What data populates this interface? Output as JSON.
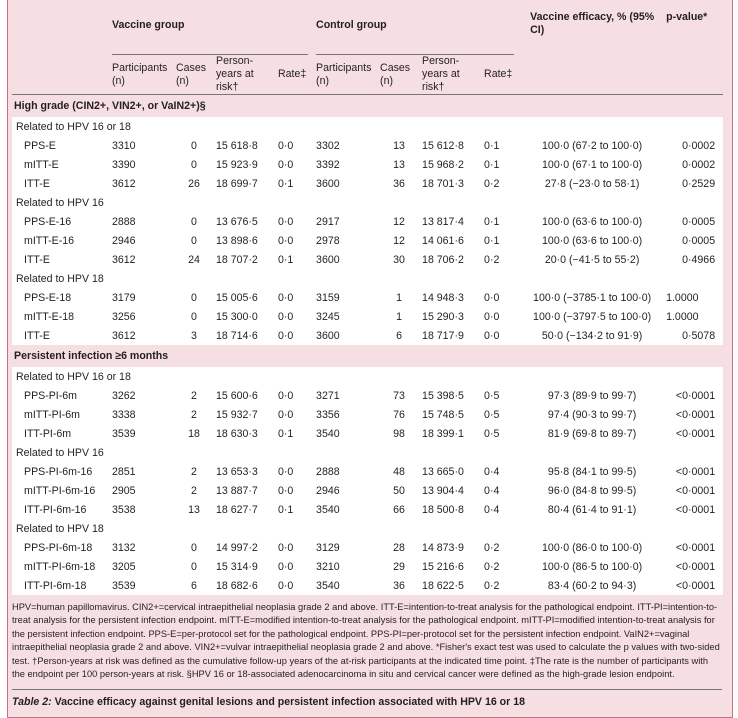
{
  "header": {
    "vaccine_group": "Vaccine group",
    "control_group": "Control group",
    "efficacy": "Vaccine efficacy, % (95% CI)",
    "p_value": "p-value*",
    "participants": "Participants (n)",
    "cases": "Cases (n)",
    "person_years": "Person-years at risk†",
    "rate": "Rate‡"
  },
  "sections": [
    {
      "title": "High grade (CIN2+, VIN2+, or VaIN2+)§",
      "groups": [
        {
          "label": "Related to HPV 16 or 18",
          "rows": [
            [
              "PPS-E",
              "3310",
              "0",
              "15 618·8",
              "0·0",
              "3302",
              "13",
              "15 612·8",
              "0·1",
              "100·0 (67·2 to 100·0)",
              "0·0002"
            ],
            [
              "mITT-E",
              "3390",
              "0",
              "15 923·9",
              "0·0",
              "3392",
              "13",
              "15 968·2",
              "0·1",
              "100·0 (67·1 to 100·0)",
              "0·0002"
            ],
            [
              "ITT-E",
              "3612",
              "26",
              "18 699·7",
              "0·1",
              "3600",
              "36",
              "18 701·3",
              "0·2",
              "27·8 (−23·0 to 58·1)",
              "0·2529"
            ]
          ]
        },
        {
          "label": "Related to HPV 16",
          "rows": [
            [
              "PPS-E-16",
              "2888",
              "0",
              "13 676·5",
              "0·0",
              "2917",
              "12",
              "13 817·4",
              "0·1",
              "100·0 (63·6 to 100·0)",
              "0·0005"
            ],
            [
              "mITT-E-16",
              "2946",
              "0",
              "13 898·6",
              "0·0",
              "2978",
              "12",
              "14 061·6",
              "0·1",
              "100·0 (63·6 to 100·0)",
              "0·0005"
            ],
            [
              "ITT-E",
              "3612",
              "24",
              "18 707·2",
              "0·1",
              "3600",
              "30",
              "18 706·2",
              "0·2",
              "20·0 (−41·5 to 55·2)",
              "0·4966"
            ]
          ]
        },
        {
          "label": "Related to HPV 18",
          "rows": [
            [
              "PPS-E-18",
              "3179",
              "0",
              "15 005·6",
              "0·0",
              "3159",
              "1",
              "14 948·3",
              "0·0",
              "100·0 (−3785·1 to 100·0)",
              "1.0000"
            ],
            [
              "mITT-E-18",
              "3256",
              "0",
              "15 300·0",
              "0·0",
              "3245",
              "1",
              "15 290·3",
              "0·0",
              "100·0 (−3797·5 to 100·0)",
              "1.0000"
            ],
            [
              "ITT-E",
              "3612",
              "3",
              "18 714·6",
              "0·0",
              "3600",
              "6",
              "18 717·9",
              "0·0",
              "50·0 (−134·2 to 91·9)",
              "0·5078"
            ]
          ]
        }
      ]
    },
    {
      "title": "Persistent infection ≥6 months",
      "groups": [
        {
          "label": "Related to HPV 16 or 18",
          "rows": [
            [
              "PPS-PI-6m",
              "3262",
              "2",
              "15 600·6",
              "0·0",
              "3271",
              "73",
              "15 398·5",
              "0·5",
              "97·3 (89·9 to 99·7)",
              "<0·0001"
            ],
            [
              "mITT-PI-6m",
              "3338",
              "2",
              "15 932·7",
              "0·0",
              "3356",
              "76",
              "15 748·5",
              "0·5",
              "97·4 (90·3 to 99·7)",
              "<0·0001"
            ],
            [
              "ITT-PI-6m",
              "3539",
              "18",
              "18 630·3",
              "0·1",
              "3540",
              "98",
              "18 399·1",
              "0·5",
              "81·9 (69·8 to 89·7)",
              "<0·0001"
            ]
          ]
        },
        {
          "label": "Related to HPV 16",
          "rows": [
            [
              "PPS-PI-6m-16",
              "2851",
              "2",
              "13 653·3",
              "0·0",
              "2888",
              "48",
              "13 665·0",
              "0·4",
              "95·8 (84·1 to 99·5)",
              "<0·0001"
            ],
            [
              "mITT-PI-6m-16",
              "2905",
              "2",
              "13 887·7",
              "0·0",
              "2946",
              "50",
              "13 904·4",
              "0·4",
              "96·0 (84·8 to 99·5)",
              "<0·0001"
            ],
            [
              "ITT-PI-6m-16",
              "3538",
              "13",
              "18 627·7",
              "0·1",
              "3540",
              "66",
              "18 500·8",
              "0·4",
              "80·4 (61·4 to 91·1)",
              "<0·0001"
            ]
          ]
        },
        {
          "label": "Related to HPV 18",
          "rows": [
            [
              "PPS-PI-6m-18",
              "3132",
              "0",
              "14 997·2",
              "0·0",
              "3129",
              "28",
              "14 873·9",
              "0·2",
              "100·0 (86·0 to 100·0)",
              "<0·0001"
            ],
            [
              "mITT-PI-6m-18",
              "3205",
              "0",
              "15 314·9",
              "0·0",
              "3210",
              "29",
              "15 216·6",
              "0·2",
              "100·0 (86·5 to 100·0)",
              "<0·0001"
            ],
            [
              "ITT-PI-6m-18",
              "3539",
              "6",
              "18 682·6",
              "0·0",
              "3540",
              "36",
              "18 622·5",
              "0·2",
              "83·4 (60·2 to 94·3)",
              "<0·0001"
            ]
          ]
        }
      ]
    }
  ],
  "footnote": "HPV=human papillomavirus. CIN2+=cervical intraepithelial neoplasia grade 2 and above. ITT-E=intention-to-treat analysis for the pathological endpoint. ITT-PI=intention-to-treat analysis for the persistent infection endpoint. mITT-E=modified intention-to-treat analysis for the pathological endpoint. mITT-PI=modified intention-to-treat analysis for the persistent infection endpoint. PPS-E=per-protocol set for the pathological endpoint. PPS-PI=per-protocol set for the persistent infection endpoint. VaIN2+=vaginal intraepithelial neoplasia grade 2 and above. VIN2+=vulvar intraepithelial neoplasia grade 2 and above. *Fisher's exact test was used to calculate the p values with two-sided test. †Person-years at risk was defined as the cumulative follow-up years of the at-risk participants at the indicated time point. ‡The rate is the number of participants with the endpoint per 100 person-years at risk. §HPV 16 or 18-associated adenocarcinoma in situ and cervical cancer were defined as the high-grade lesion endpoint.",
  "caption": {
    "label": "Table 2:",
    "text": " Vaccine efficacy against genital lesions and persistent infection associated with HPV 16 or 18"
  },
  "colors": {
    "border": "#d36b85",
    "background": "#f5dfe2",
    "body": "#ffffff"
  }
}
